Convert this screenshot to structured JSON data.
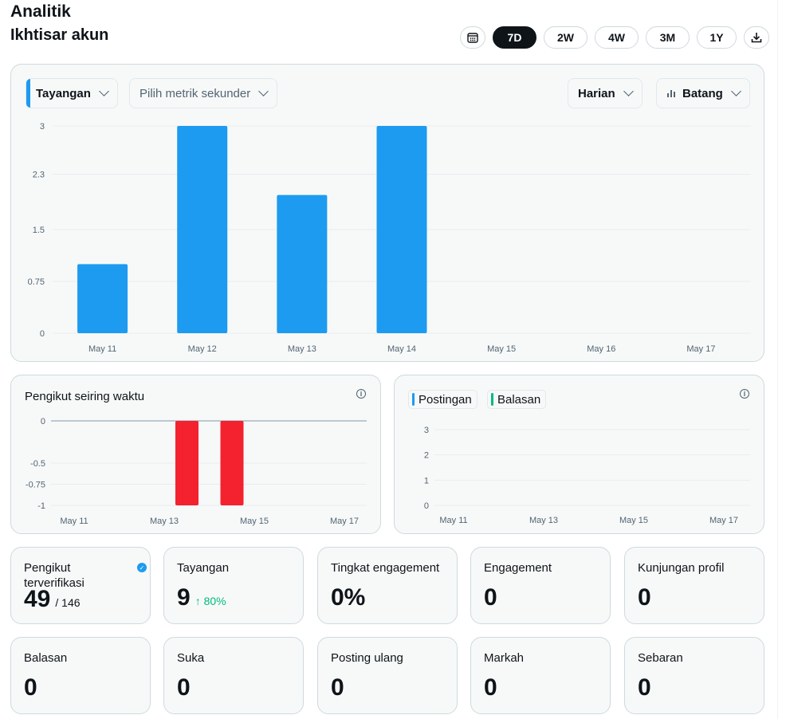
{
  "header": {
    "title": "Analitik",
    "section_title": "Ikhtisar akun"
  },
  "range": {
    "calendar_icon": "calendar-icon",
    "options": [
      "7D",
      "2W",
      "4W",
      "3M",
      "1Y"
    ],
    "selected": "7D",
    "download_icon": "download-icon"
  },
  "main_chart": {
    "primary_metric": "Tayangan",
    "secondary_placeholder": "Pilih metrik sekunder",
    "interval": "Harian",
    "chart_type": "Batang",
    "accent_color": "#1d9bf0"
  },
  "followers_chart": {
    "title": "Pengikut seiring waktu",
    "bar_color": "#f4212e"
  },
  "posts_chart": {
    "legend": [
      {
        "label": "Postingan",
        "color": "#1d9bf0"
      },
      {
        "label": "Balasan",
        "color": "#00ba7c"
      }
    ]
  },
  "metrics_row1": [
    {
      "label": "Pengikut terverifikasi",
      "value": "49",
      "sub": "/ 146",
      "verified": true
    },
    {
      "label": "Tayangan",
      "value": "9",
      "change": "↑ 80%"
    },
    {
      "label": "Tingkat engagement",
      "value": "0%"
    },
    {
      "label": "Engagement",
      "value": "0"
    },
    {
      "label": "Kunjungan profil",
      "value": "0"
    }
  ],
  "metrics_row2": [
    {
      "label": "Balasan",
      "value": "0"
    },
    {
      "label": "Suka",
      "value": "0"
    },
    {
      "label": "Posting ulang",
      "value": "0"
    },
    {
      "label": "Markah",
      "value": "0"
    },
    {
      "label": "Sebaran",
      "value": "0"
    }
  ],
  "chart_data": [
    {
      "type": "bar",
      "categories": [
        "May 11",
        "May 12",
        "May 13",
        "May 14",
        "May 15",
        "May 16",
        "May 17"
      ],
      "values": [
        1,
        3,
        2,
        3,
        0,
        0,
        0
      ],
      "yticks": [
        "0",
        "0.75",
        "1.5",
        "2.3",
        "3"
      ],
      "ylim": [
        0,
        3
      ],
      "color": "#1d9bf0"
    },
    {
      "type": "bar",
      "title": "Pengikut seiring waktu",
      "x_tick_labels": [
        "May 11",
        "May 13",
        "May 15",
        "May 17"
      ],
      "bars": [
        {
          "x": "May 14",
          "value": -1
        },
        {
          "x": "May 15",
          "value": -1
        }
      ],
      "yticks": [
        "0",
        "-0.5",
        "-0.75",
        "-1"
      ],
      "ylim": [
        -1,
        0
      ],
      "color": "#f4212e"
    },
    {
      "type": "line",
      "x_tick_labels": [
        "May 11",
        "May 13",
        "May 15",
        "May 17"
      ],
      "series": [
        {
          "name": "Postingan",
          "values": []
        },
        {
          "name": "Balasan",
          "values": []
        }
      ],
      "yticks": [
        "0",
        "1",
        "2",
        "3"
      ],
      "ylim": [
        0,
        3
      ]
    }
  ]
}
